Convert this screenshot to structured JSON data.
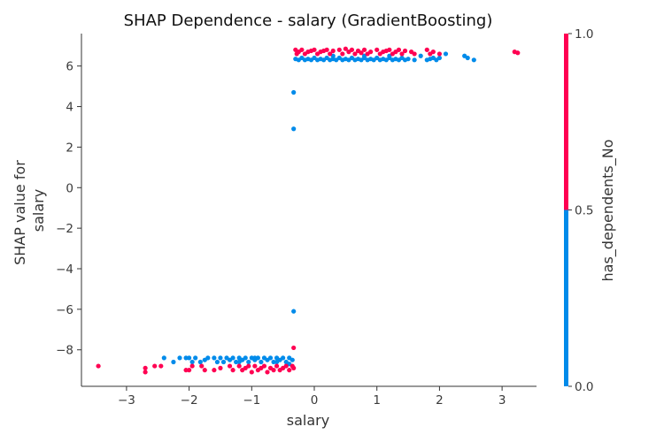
{
  "chart_data": {
    "type": "scatter",
    "title": "SHAP Dependence - salary (GradientBoosting)",
    "xlabel": "salary",
    "ylabel_lines": [
      "SHAP value for",
      "salary"
    ],
    "xlim": [
      -3.72,
      3.55
    ],
    "ylim": [
      -9.8,
      7.6
    ],
    "xticks": [
      -3,
      -2,
      -1,
      0,
      1,
      2,
      3
    ],
    "xtick_labels": [
      "−3",
      "−2",
      "−1",
      "0",
      "1",
      "2",
      "3"
    ],
    "yticks": [
      -8,
      -6,
      -4,
      -2,
      0,
      2,
      4,
      6
    ],
    "ytick_labels": [
      "−8",
      "−6",
      "−4",
      "−2",
      "0",
      "2",
      "4",
      "6"
    ],
    "colorbar": {
      "label": "has_dependents_No",
      "ticks": [
        0.0,
        0.5,
        1.0
      ],
      "tick_labels": [
        "0.0",
        "0.5",
        "1.0"
      ],
      "low_color": "#008bea",
      "high_color": "#ff0052"
    },
    "series": [
      {
        "color_value": 0,
        "color": "#008bea",
        "points": [
          [
            -2.4,
            -8.4
          ],
          [
            -2.25,
            -8.6
          ],
          [
            -2.15,
            -8.4
          ],
          [
            -2.05,
            -8.4
          ],
          [
            -2.0,
            -8.4
          ],
          [
            -1.95,
            -8.6
          ],
          [
            -1.9,
            -8.4
          ],
          [
            -1.82,
            -8.6
          ],
          [
            -1.75,
            -8.5
          ],
          [
            -1.7,
            -8.4
          ],
          [
            -1.6,
            -8.4
          ],
          [
            -1.55,
            -8.6
          ],
          [
            -1.5,
            -8.4
          ],
          [
            -1.45,
            -8.6
          ],
          [
            -1.4,
            -8.4
          ],
          [
            -1.35,
            -8.5
          ],
          [
            -1.3,
            -8.4
          ],
          [
            -1.25,
            -8.6
          ],
          [
            -1.2,
            -8.4
          ],
          [
            -1.15,
            -8.5
          ],
          [
            -1.1,
            -8.4
          ],
          [
            -1.05,
            -8.6
          ],
          [
            -1.0,
            -8.4
          ],
          [
            -0.95,
            -8.5
          ],
          [
            -0.9,
            -8.4
          ],
          [
            -0.85,
            -8.6
          ],
          [
            -0.8,
            -8.4
          ],
          [
            -0.75,
            -8.5
          ],
          [
            -0.7,
            -8.4
          ],
          [
            -0.65,
            -8.6
          ],
          [
            -0.6,
            -8.4
          ],
          [
            -0.55,
            -8.5
          ],
          [
            -0.5,
            -8.4
          ],
          [
            -0.45,
            -8.6
          ],
          [
            -0.4,
            -8.4
          ],
          [
            -0.35,
            -8.5
          ],
          [
            -1.2,
            -8.6
          ],
          [
            -0.95,
            -8.4
          ],
          [
            -0.6,
            -8.6
          ],
          [
            -0.4,
            -8.7
          ],
          [
            -0.33,
            4.7
          ],
          [
            -0.33,
            2.9
          ],
          [
            -0.33,
            -6.1
          ],
          [
            -0.3,
            6.35
          ],
          [
            -0.25,
            6.3
          ],
          [
            -0.2,
            6.4
          ],
          [
            -0.15,
            6.3
          ],
          [
            -0.1,
            6.35
          ],
          [
            -0.05,
            6.3
          ],
          [
            0.0,
            6.4
          ],
          [
            0.05,
            6.3
          ],
          [
            0.1,
            6.35
          ],
          [
            0.15,
            6.3
          ],
          [
            0.2,
            6.4
          ],
          [
            0.25,
            6.3
          ],
          [
            0.3,
            6.35
          ],
          [
            0.35,
            6.3
          ],
          [
            0.4,
            6.4
          ],
          [
            0.45,
            6.3
          ],
          [
            0.5,
            6.35
          ],
          [
            0.55,
            6.3
          ],
          [
            0.6,
            6.4
          ],
          [
            0.65,
            6.3
          ],
          [
            0.7,
            6.35
          ],
          [
            0.75,
            6.3
          ],
          [
            0.8,
            6.4
          ],
          [
            0.85,
            6.3
          ],
          [
            0.9,
            6.35
          ],
          [
            0.95,
            6.3
          ],
          [
            1.0,
            6.4
          ],
          [
            1.05,
            6.3
          ],
          [
            1.1,
            6.35
          ],
          [
            1.15,
            6.3
          ],
          [
            1.2,
            6.4
          ],
          [
            1.25,
            6.3
          ],
          [
            1.3,
            6.35
          ],
          [
            1.35,
            6.3
          ],
          [
            1.4,
            6.4
          ],
          [
            1.45,
            6.3
          ],
          [
            1.5,
            6.35
          ],
          [
            1.6,
            6.3
          ],
          [
            1.7,
            6.5
          ],
          [
            1.8,
            6.3
          ],
          [
            1.85,
            6.35
          ],
          [
            1.9,
            6.4
          ],
          [
            1.95,
            6.3
          ],
          [
            2.0,
            6.4
          ],
          [
            2.1,
            6.6
          ],
          [
            2.4,
            6.5
          ],
          [
            2.45,
            6.4
          ],
          [
            2.55,
            6.3
          ],
          [
            0.3,
            6.5
          ],
          [
            0.8,
            6.5
          ],
          [
            1.2,
            6.5
          ]
        ]
      },
      {
        "color_value": 1,
        "color": "#ff0052",
        "points": [
          [
            -3.45,
            -8.8
          ],
          [
            -2.7,
            -8.9
          ],
          [
            -2.7,
            -9.1
          ],
          [
            -2.55,
            -8.8
          ],
          [
            -2.45,
            -8.8
          ],
          [
            -2.05,
            -9.0
          ],
          [
            -2.0,
            -9.0
          ],
          [
            -1.95,
            -8.8
          ],
          [
            -1.8,
            -8.8
          ],
          [
            -1.75,
            -9.0
          ],
          [
            -1.6,
            -9.0
          ],
          [
            -1.5,
            -8.9
          ],
          [
            -1.35,
            -8.8
          ],
          [
            -1.3,
            -9.0
          ],
          [
            -1.2,
            -8.8
          ],
          [
            -1.15,
            -9.0
          ],
          [
            -1.1,
            -8.9
          ],
          [
            -1.05,
            -8.8
          ],
          [
            -1.0,
            -9.1
          ],
          [
            -0.95,
            -8.8
          ],
          [
            -0.9,
            -9.0
          ],
          [
            -0.85,
            -8.9
          ],
          [
            -0.8,
            -8.8
          ],
          [
            -0.75,
            -9.1
          ],
          [
            -0.7,
            -8.9
          ],
          [
            -0.65,
            -9.0
          ],
          [
            -0.6,
            -8.8
          ],
          [
            -0.55,
            -9.0
          ],
          [
            -0.5,
            -8.9
          ],
          [
            -0.45,
            -8.8
          ],
          [
            -0.4,
            -9.0
          ],
          [
            -0.35,
            -8.8
          ],
          [
            -0.33,
            -7.9
          ],
          [
            -0.33,
            -8.9
          ],
          [
            -0.3,
            6.8
          ],
          [
            -0.28,
            6.6
          ],
          [
            -0.25,
            6.7
          ],
          [
            -0.2,
            6.8
          ],
          [
            -0.15,
            6.6
          ],
          [
            -0.1,
            6.7
          ],
          [
            0.0,
            6.8
          ],
          [
            0.05,
            6.6
          ],
          [
            0.1,
            6.7
          ],
          [
            0.2,
            6.8
          ],
          [
            0.25,
            6.6
          ],
          [
            0.3,
            6.75
          ],
          [
            0.4,
            6.8
          ],
          [
            0.45,
            6.6
          ],
          [
            0.5,
            6.85
          ],
          [
            0.55,
            6.7
          ],
          [
            0.6,
            6.8
          ],
          [
            0.65,
            6.6
          ],
          [
            0.7,
            6.75
          ],
          [
            0.8,
            6.8
          ],
          [
            0.85,
            6.6
          ],
          [
            0.9,
            6.7
          ],
          [
            1.0,
            6.8
          ],
          [
            1.05,
            6.6
          ],
          [
            1.1,
            6.7
          ],
          [
            1.2,
            6.8
          ],
          [
            1.25,
            6.6
          ],
          [
            1.3,
            6.7
          ],
          [
            1.35,
            6.8
          ],
          [
            1.4,
            6.6
          ],
          [
            1.45,
            6.75
          ],
          [
            1.55,
            6.7
          ],
          [
            1.6,
            6.6
          ],
          [
            1.8,
            6.8
          ],
          [
            1.85,
            6.6
          ],
          [
            1.9,
            6.7
          ],
          [
            2.0,
            6.6
          ],
          [
            3.2,
            6.7
          ],
          [
            3.25,
            6.65
          ],
          [
            0.15,
            6.75
          ],
          [
            0.75,
            6.65
          ],
          [
            1.15,
            6.75
          ],
          [
            -0.05,
            6.75
          ]
        ]
      }
    ]
  }
}
